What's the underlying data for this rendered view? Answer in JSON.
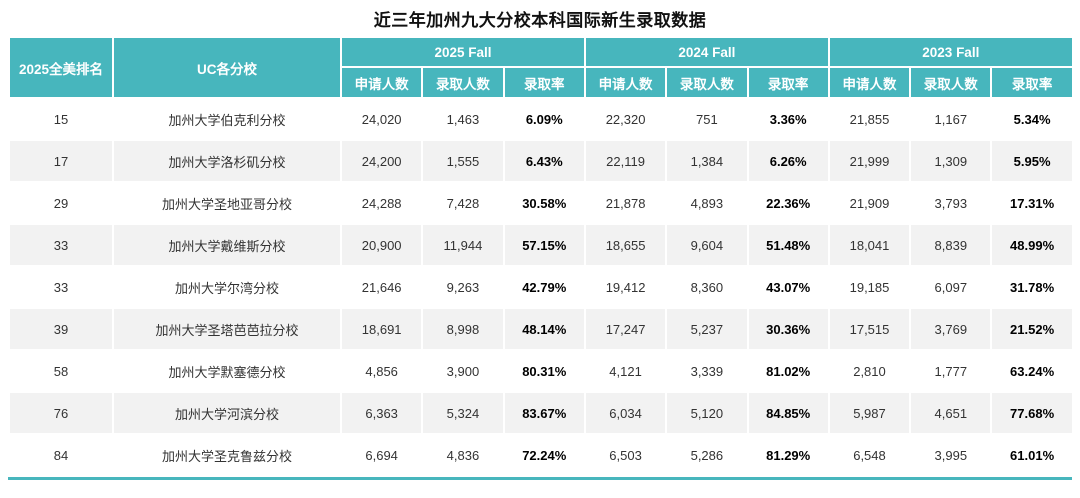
{
  "page": {
    "title": "近三年加州九大分校本科国际新生录取数据"
  },
  "chart_data": {
    "type": "table",
    "title": "近三年加州九大分校本科国际新生录取数据",
    "header": {
      "rank": "2025全美排名",
      "school": "UC各分校",
      "year_groups": [
        "2025 Fall",
        "2024 Fall",
        "2023 Fall"
      ],
      "sub_columns": [
        "申请人数",
        "录取人数",
        "录取率"
      ]
    },
    "rows": [
      {
        "rank": "15",
        "school": "加州大学伯克利分校",
        "values": [
          "24,020",
          "1,463",
          "6.09%",
          "22,320",
          "751",
          "3.36%",
          "21,855",
          "1,167",
          "5.34%"
        ]
      },
      {
        "rank": "17",
        "school": "加州大学洛杉矶分校",
        "values": [
          "24,200",
          "1,555",
          "6.43%",
          "22,119",
          "1,384",
          "6.26%",
          "21,999",
          "1,309",
          "5.95%"
        ]
      },
      {
        "rank": "29",
        "school": "加州大学圣地亚哥分校",
        "values": [
          "24,288",
          "7,428",
          "30.58%",
          "21,878",
          "4,893",
          "22.36%",
          "21,909",
          "3,793",
          "17.31%"
        ]
      },
      {
        "rank": "33",
        "school": "加州大学戴维斯分校",
        "values": [
          "20,900",
          "11,944",
          "57.15%",
          "18,655",
          "9,604",
          "51.48%",
          "18,041",
          "8,839",
          "48.99%"
        ]
      },
      {
        "rank": "33",
        "school": "加州大学尔湾分校",
        "values": [
          "21,646",
          "9,263",
          "42.79%",
          "19,412",
          "8,360",
          "43.07%",
          "19,185",
          "6,097",
          "31.78%"
        ]
      },
      {
        "rank": "39",
        "school": "加州大学圣塔芭芭拉分校",
        "values": [
          "18,691",
          "8,998",
          "48.14%",
          "17,247",
          "5,237",
          "30.36%",
          "17,515",
          "3,769",
          "21.52%"
        ]
      },
      {
        "rank": "58",
        "school": "加州大学默塞德分校",
        "values": [
          "4,856",
          "3,900",
          "80.31%",
          "4,121",
          "3,339",
          "81.02%",
          "2,810",
          "1,777",
          "63.24%"
        ]
      },
      {
        "rank": "76",
        "school": "加州大学河滨分校",
        "values": [
          "6,363",
          "5,324",
          "83.67%",
          "6,034",
          "5,120",
          "84.85%",
          "5,987",
          "4,651",
          "77.68%"
        ]
      },
      {
        "rank": "84",
        "school": "加州大学圣克鲁兹分校",
        "values": [
          "6,694",
          "4,836",
          "72.24%",
          "6,503",
          "5,286",
          "81.29%",
          "6,548",
          "3,995",
          "61.01%"
        ]
      }
    ],
    "colors": {
      "header_bg": "#47b6bd",
      "header_text": "#ffffff",
      "alt_row_bg": "#f2f2f2",
      "rate_text": "#000000",
      "bottom_border": "#47b6bd"
    },
    "layout": {
      "rank_col_merged_rows": 2,
      "school_col_merged_rows": 2,
      "columns_per_year_group": 3
    }
  }
}
